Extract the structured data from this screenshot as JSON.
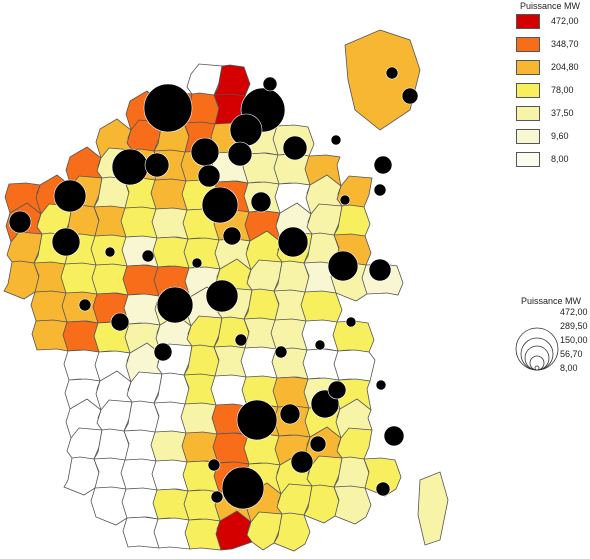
{
  "legend_color": {
    "title": "Puissance MW",
    "classes": [
      {
        "label": "472,00",
        "color": "#d40000"
      },
      {
        "label": "348,70",
        "color": "#f76d1a"
      },
      {
        "label": "204,80",
        "color": "#f7b733"
      },
      {
        "label": "78,00",
        "color": "#f7ef5e"
      },
      {
        "label": "37,50",
        "color": "#f7f4a8"
      },
      {
        "label": "9,60",
        "color": "#f9f7d2"
      },
      {
        "label": "8,00",
        "color": "#fbfbee"
      }
    ]
  },
  "legend_size": {
    "title": "Puissance MW",
    "values": [
      "472,00",
      "289,50",
      "150,00",
      "56,70",
      "8,00"
    ]
  },
  "colors": {
    "none": "#ffffff",
    "bubble": "#000000",
    "border": "#555555"
  }
}
